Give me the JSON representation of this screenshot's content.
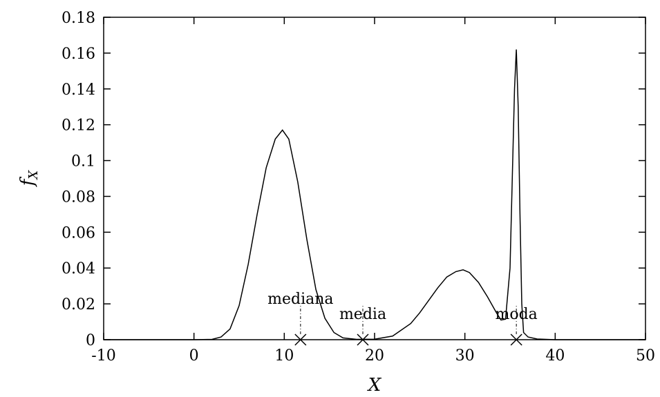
{
  "chart_data": {
    "type": "line",
    "title": "",
    "xlabel": "X",
    "ylabel": "f_X",
    "ylabel_main": "f",
    "ylabel_sub": "X",
    "xlim": [
      -10,
      50
    ],
    "ylim": [
      0,
      0.18
    ],
    "x_ticks": [
      "-10",
      "0",
      "10",
      "20",
      "30",
      "40",
      "50"
    ],
    "y_ticks": [
      "0",
      "0.02",
      "0.04",
      "0.06",
      "0.08",
      "0.1",
      "0.12",
      "0.14",
      "0.16",
      "0.18"
    ],
    "grid": false,
    "legend": "none",
    "series": [
      {
        "x": [
          -10,
          0,
          2,
          3,
          4,
          5,
          6,
          7,
          8,
          9,
          9.8,
          10.5,
          11.5,
          12.5,
          13.5,
          14.5,
          15.5,
          16.5,
          18,
          20,
          22,
          24,
          25,
          26,
          27,
          28,
          29,
          29.8,
          30.5,
          31.5,
          32.5,
          33.5,
          34,
          34.5,
          35,
          35.3,
          35.5,
          35.7,
          35.9,
          36.1,
          36.3,
          36.5,
          37,
          38,
          40,
          50
        ],
        "y": [
          0,
          0,
          0.0002,
          0.0015,
          0.006,
          0.019,
          0.042,
          0.07,
          0.096,
          0.112,
          0.117,
          0.112,
          0.088,
          0.056,
          0.028,
          0.012,
          0.004,
          0.001,
          0.0002,
          0.0003,
          0.002,
          0.009,
          0.015,
          0.022,
          0.029,
          0.035,
          0.038,
          0.039,
          0.0375,
          0.032,
          0.024,
          0.015,
          0.011,
          0.0115,
          0.04,
          0.1,
          0.14,
          0.162,
          0.13,
          0.07,
          0.02,
          0.004,
          0.0015,
          0.0004,
          0,
          0
        ]
      }
    ],
    "markers": [
      {
        "label": "mediana",
        "x": 11.8,
        "y": 0
      },
      {
        "label": "media",
        "x": 18.7,
        "y": 0
      },
      {
        "label": "moda",
        "x": 35.7,
        "y": 0
      }
    ]
  }
}
